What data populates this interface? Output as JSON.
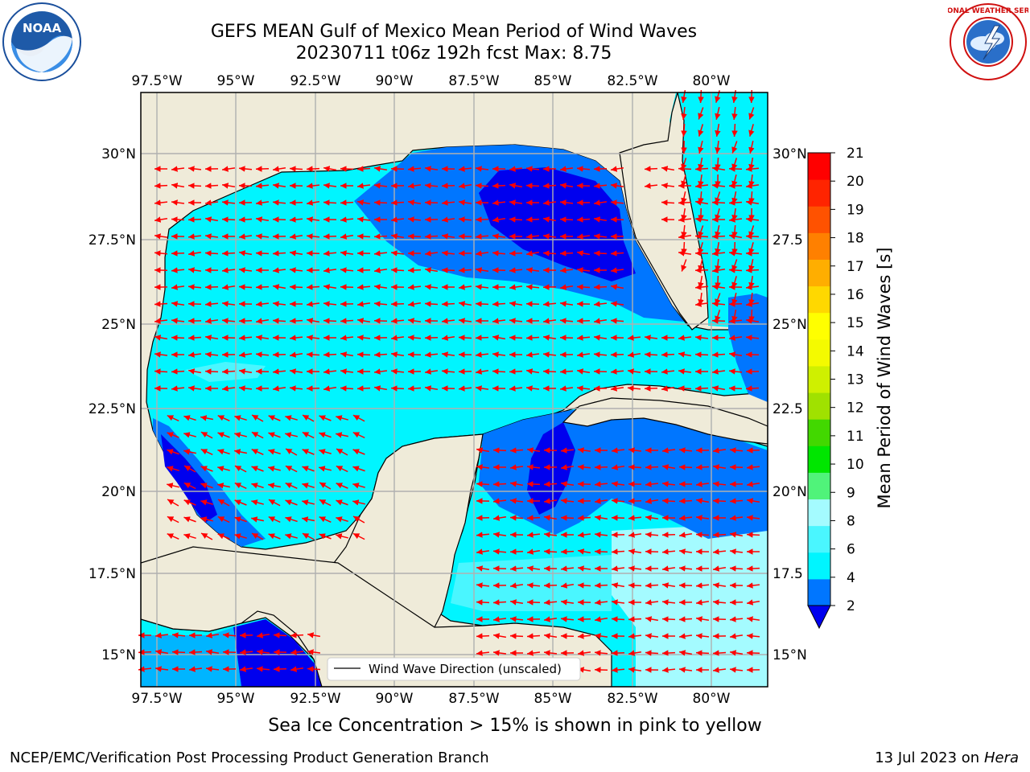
{
  "header": {
    "title_line1": "GEFS MEAN Gulf of Mexico Mean Period of Wind Waves",
    "title_line2": "20230711 t06z 192h fcst   Max: 8.75"
  },
  "logos": {
    "left": {
      "icon": "noaa-logo",
      "text": "NOAA"
    },
    "right": {
      "icon": "national-weather-service-logo",
      "text": "NATIONAL WEATHER SERVICE"
    }
  },
  "map": {
    "lon_labels": [
      "97.5°W",
      "95°W",
      "92.5°W",
      "90°W",
      "87.5°W",
      "85°W",
      "82.5°W",
      "80°W"
    ],
    "lat_labels_left": [
      "30°N",
      "27.5°N",
      "25°N",
      "22.5°N",
      "20°N",
      "17.5°N",
      "15°N"
    ],
    "lat_labels_right": [
      "30°N",
      "27.5",
      "25°N",
      "22.5",
      "20°N",
      "17.5",
      "15°N"
    ],
    "legend_label": "Wind Wave Direction (unscaled)",
    "colors": {
      "land": "#efebd9",
      "coast": "#000000",
      "grid": "#b0b0b0",
      "arrow": "#ff0000"
    }
  },
  "colorbar": {
    "label": "Mean Period of Wind Waves [s]",
    "tick_labels": [
      "21",
      "20",
      "19",
      "18",
      "17",
      "16",
      "15",
      "14",
      "13",
      "12",
      "11",
      "10",
      "9",
      "8",
      "6",
      "4",
      "2"
    ],
    "colors": [
      "#0000ee",
      "#0076ff",
      "#00f5ff",
      "#4af6ff",
      "#a4fbff",
      "#50f37a",
      "#00e600",
      "#42d800",
      "#a0e100",
      "#cff000",
      "#f4fa00",
      "#ffff00",
      "#ffd800",
      "#ffae00",
      "#ff8000",
      "#ff5200",
      "#ff2400",
      "#ff0000"
    ]
  },
  "chart_data": {
    "type": "heatmap",
    "title": "GEFS MEAN Gulf of Mexico Mean Period of Wind Waves",
    "subtitle": "20230711 t06z 192h fcst   Max: 8.75",
    "variable": "Mean Period of Wind Waves [s]",
    "max_value": 8.75,
    "xlim": [
      -98,
      -78
    ],
    "ylim": [
      14,
      31.75
    ],
    "colorbar_levels": [
      2,
      4,
      6,
      8,
      9,
      10,
      11,
      12,
      13,
      14,
      15,
      16,
      17,
      18,
      19,
      20,
      21
    ],
    "vector_field": "Wind Wave Direction (unscaled)"
  },
  "footer": {
    "note": "Sea Ice Concentration > 15% is shown in pink to yellow",
    "left": "NCEP/EMC/Verification Post Processing Product Generation Branch",
    "date": "13 Jul 2023 on",
    "host": "Hera"
  }
}
